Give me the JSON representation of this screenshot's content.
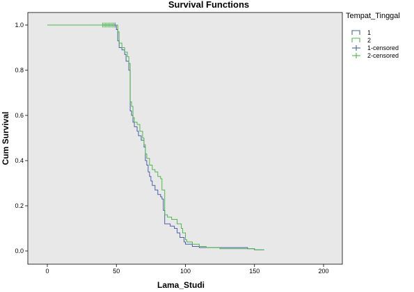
{
  "chart_data": {
    "type": "line",
    "step": true,
    "title": "Survival Functions",
    "xlabel": "Lama_Studi",
    "ylabel": "Cum Survival",
    "xlim": [
      0,
      200
    ],
    "ylim": [
      0.0,
      1.0
    ],
    "x_ticks": [
      "0",
      "50",
      "100",
      "150",
      "200"
    ],
    "y_ticks": [
      "0.0",
      "0.2",
      "0.4",
      "0.6",
      "0.8",
      "1.0"
    ],
    "grid": false,
    "legend": {
      "title": "Tempat_Tinggal",
      "placement": "right",
      "entries": [
        "1",
        "2",
        "1-censored",
        "2-censored"
      ]
    },
    "colors": {
      "series_1": "#4a5fa8",
      "series_2": "#4cb84c",
      "plot_background": "#e8e8e8"
    },
    "series": [
      {
        "name": "1",
        "color": "#4a5fa8",
        "points": [
          [
            0,
            1.0
          ],
          [
            50,
            1.0
          ],
          [
            50,
            0.98
          ],
          [
            51,
            0.93
          ],
          [
            52,
            0.9
          ],
          [
            54,
            0.89
          ],
          [
            56,
            0.87
          ],
          [
            57,
            0.84
          ],
          [
            59,
            0.8
          ],
          [
            60,
            0.7
          ],
          [
            60,
            0.62
          ],
          [
            61,
            0.6
          ],
          [
            62,
            0.57
          ],
          [
            63,
            0.55
          ],
          [
            65,
            0.53
          ],
          [
            66,
            0.51
          ],
          [
            68,
            0.49
          ],
          [
            70,
            0.46
          ],
          [
            71,
            0.4
          ],
          [
            72,
            0.38
          ],
          [
            73,
            0.35
          ],
          [
            74,
            0.33
          ],
          [
            75,
            0.31
          ],
          [
            76,
            0.29
          ],
          [
            78,
            0.27
          ],
          [
            80,
            0.25
          ],
          [
            82,
            0.24
          ],
          [
            83,
            0.23
          ],
          [
            84,
            0.18
          ],
          [
            85,
            0.12
          ],
          [
            89,
            0.11
          ],
          [
            92,
            0.1
          ],
          [
            94,
            0.08
          ],
          [
            96,
            0.06
          ],
          [
            99,
            0.04
          ],
          [
            100,
            0.03
          ],
          [
            105,
            0.02
          ],
          [
            110,
            0.015
          ],
          [
            145,
            0.01
          ],
          [
            150,
            0.005
          ],
          [
            157,
            0.005
          ]
        ]
      },
      {
        "name": "2",
        "color": "#4cb84c",
        "points": [
          [
            0,
            1.0
          ],
          [
            51,
            1.0
          ],
          [
            51,
            0.97
          ],
          [
            52,
            0.92
          ],
          [
            54,
            0.9
          ],
          [
            56,
            0.88
          ],
          [
            58,
            0.86
          ],
          [
            59,
            0.83
          ],
          [
            60,
            0.72
          ],
          [
            60,
            0.66
          ],
          [
            61,
            0.64
          ],
          [
            62,
            0.59
          ],
          [
            63,
            0.57
          ],
          [
            65,
            0.56
          ],
          [
            67,
            0.53
          ],
          [
            69,
            0.5
          ],
          [
            70,
            0.47
          ],
          [
            71,
            0.43
          ],
          [
            72,
            0.41
          ],
          [
            74,
            0.38
          ],
          [
            76,
            0.36
          ],
          [
            78,
            0.35
          ],
          [
            80,
            0.33
          ],
          [
            82,
            0.32
          ],
          [
            83,
            0.27
          ],
          [
            85,
            0.16
          ],
          [
            87,
            0.15
          ],
          [
            90,
            0.14
          ],
          [
            94,
            0.12
          ],
          [
            97,
            0.1
          ],
          [
            98,
            0.08
          ],
          [
            100,
            0.05
          ],
          [
            101,
            0.04
          ],
          [
            105,
            0.03
          ],
          [
            110,
            0.02
          ],
          [
            115,
            0.015
          ],
          [
            125,
            0.01
          ],
          [
            150,
            0.005
          ],
          [
            157,
            0.005
          ]
        ]
      }
    ],
    "censored": [
      {
        "series": "2",
        "color": "#4cb84c",
        "x": [
          40,
          41,
          42,
          43,
          44,
          45,
          46,
          47,
          48
        ],
        "y": 1.0
      },
      {
        "series": "1",
        "color": "#4a5fa8",
        "x": [
          49
        ],
        "y": 1.0
      }
    ]
  }
}
